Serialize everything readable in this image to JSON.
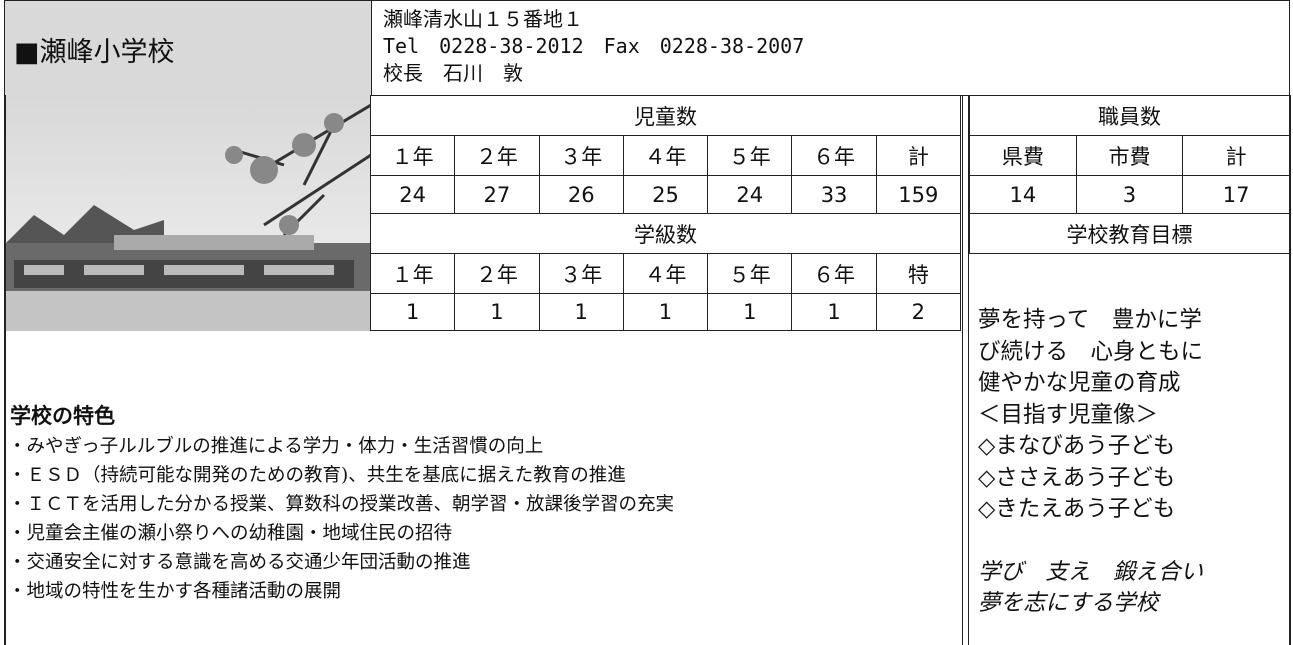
{
  "header": {
    "school_name": "■瀬峰小学校",
    "address_lines": [
      "瀬峰清水山１５番地１",
      "Tel　0228-38-2012　Fax　0228-38-2007",
      "校長　石川　敦"
    ]
  },
  "students": {
    "title": "児童数",
    "columns": [
      "１年",
      "２年",
      "３年",
      "４年",
      "５年",
      "６年",
      "計"
    ],
    "counts": [
      "24",
      "27",
      "26",
      "25",
      "24",
      "33",
      "159"
    ]
  },
  "classes": {
    "title": "学級数",
    "columns": [
      "１年",
      "２年",
      "３年",
      "４年",
      "５年",
      "６年",
      "特"
    ],
    "counts": [
      "1",
      "1",
      "1",
      "1",
      "1",
      "1",
      "2"
    ]
  },
  "staff": {
    "title": "職員数",
    "columns": [
      "県費",
      "市費",
      "計"
    ],
    "counts": [
      "14",
      "3",
      "17"
    ]
  },
  "goals": {
    "title": "学校教育目標",
    "lines": [
      "夢を持って　豊かに学",
      "び続ける　心身ともに",
      "健やかな児童の育成",
      "＜目指す児童像＞",
      "◇まなびあう子ども",
      "◇ささえあう子ども",
      "◇きたえあう子ども"
    ],
    "motto": [
      "学び　支え　鍛え合い",
      "夢を志にする学校"
    ]
  },
  "features": {
    "title": "学校の特色",
    "items": [
      "・みやぎっ子ルルブルの推進による学力・体力・生活習慣の向上",
      "・ＥＳＤ（持続可能な開発のための教育)、共生を基底に据えた教育の推進",
      "・ＩＣＴを活用した分かる授業、算数科の授業改善、朝学習・放課後学習の充実",
      "・児童会主催の瀬小祭りへの幼稚園・地域住民の招待",
      "・交通安全に対する意識を高める交通少年団活動の推進",
      "・地域の特性を生かす各種諸活動の展開"
    ]
  }
}
